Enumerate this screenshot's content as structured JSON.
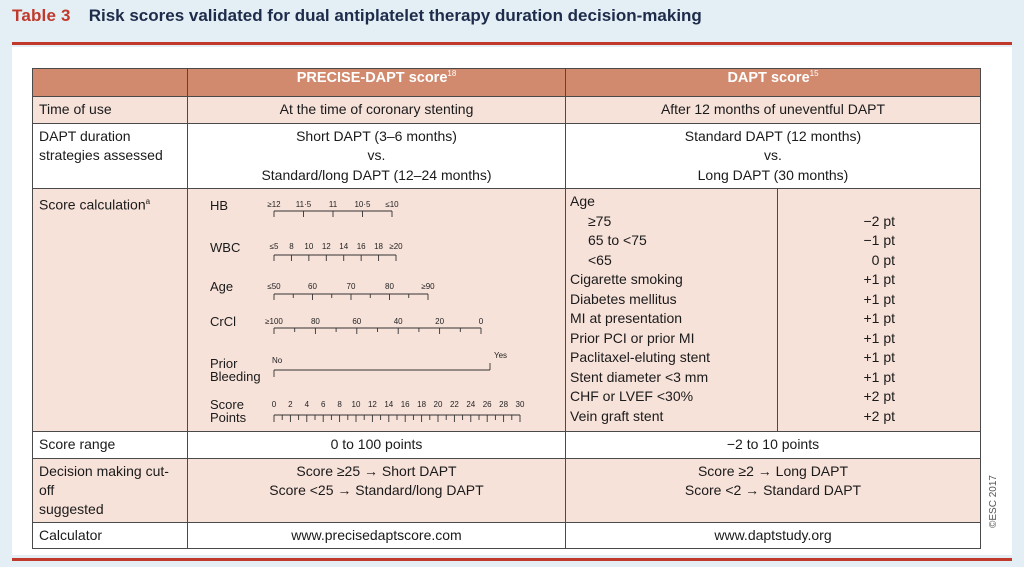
{
  "title": {
    "label": "Table 3",
    "text": "Risk scores validated for dual antiplatelet therapy duration decision-making"
  },
  "headers": {
    "precise": "PRECISE-DAPT score",
    "precise_ref": "18",
    "dapt": "DAPT score",
    "dapt_ref": "15"
  },
  "rows": {
    "time_of_use": {
      "label": "Time of use",
      "precise": "At the time of coronary stenting",
      "dapt": "After 12 months of uneventful DAPT"
    },
    "strategies": {
      "label1": "DAPT duration",
      "label2": "strategies assessed",
      "precise": [
        "Short DAPT (3–6 months)",
        "vs.",
        "Standard/long DAPT (12–24 months)"
      ],
      "dapt": [
        "Standard DAPT (12 months)",
        "vs.",
        "Long DAPT (30 months)"
      ]
    },
    "score_calc": {
      "label": "Score calculation",
      "label_sup": "a"
    },
    "score_range": {
      "label": "Score range",
      "precise": "0 to 100 points",
      "dapt": "−2 to 10 points"
    },
    "cutoff": {
      "label1": "Decision making cut-off",
      "label2": "suggested",
      "precise": [
        "Score ≥25 → Short DAPT",
        "Score <25 → Standard/long DAPT"
      ],
      "dapt": [
        "Score ≥2 → Long DAPT",
        "Score <2 → Standard DAPT"
      ]
    },
    "calculator": {
      "label": "Calculator",
      "precise": "www.precisedaptscore.com",
      "dapt": "www.daptstudy.org"
    }
  },
  "nomogram": {
    "hb": {
      "label": "HB",
      "ticks": [
        "≥12",
        "11·5",
        "11",
        "10·5",
        "≤10"
      ]
    },
    "wbc": {
      "label": "WBC",
      "ticks": [
        "≤5",
        "8",
        "10",
        "12",
        "14",
        "16",
        "18",
        "≥20"
      ]
    },
    "age": {
      "label": "Age",
      "ticks": [
        "≤50",
        "60",
        "70",
        "80",
        "≥90"
      ]
    },
    "crcl": {
      "label": "CrCl",
      "ticks": [
        "≥100",
        "80",
        "60",
        "40",
        "20",
        "0"
      ]
    },
    "bleeding": {
      "label1": "Prior",
      "label2": "Bleeding",
      "no": "No",
      "yes": "Yes"
    },
    "points": {
      "label1": "Score",
      "label2": "Points",
      "ticks": [
        "0",
        "2",
        "4",
        "6",
        "8",
        "10",
        "12",
        "14",
        "16",
        "18",
        "20",
        "22",
        "24",
        "26",
        "28",
        "30"
      ]
    }
  },
  "dapt_items": [
    {
      "label": "Age",
      "points": "",
      "indent": false
    },
    {
      "label": "≥75",
      "points": "−2 pt",
      "indent": true
    },
    {
      "label": "65 to <75",
      "points": "−1 pt",
      "indent": true
    },
    {
      "label": "<65",
      "points": "0 pt",
      "indent": true
    },
    {
      "label": "Cigarette smoking",
      "points": "+1 pt",
      "indent": false
    },
    {
      "label": "Diabetes mellitus",
      "points": "+1 pt",
      "indent": false
    },
    {
      "label": "MI at presentation",
      "points": "+1 pt",
      "indent": false
    },
    {
      "label": "Prior PCI or prior MI",
      "points": "+1 pt",
      "indent": false
    },
    {
      "label": "Paclitaxel-eluting stent",
      "points": "+1 pt",
      "indent": false
    },
    {
      "label": "Stent diameter <3 mm",
      "points": "+1 pt",
      "indent": false
    },
    {
      "label": "CHF or LVEF <30%",
      "points": "+2 pt",
      "indent": false
    },
    {
      "label": "Vein graft stent",
      "points": "+2 pt",
      "indent": false
    }
  ],
  "watermark": "©ESC 2017"
}
